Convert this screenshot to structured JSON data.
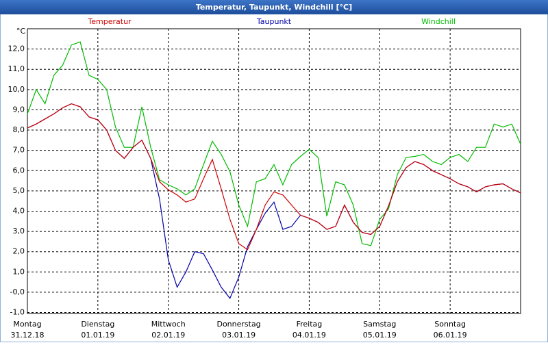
{
  "chart_data": {
    "type": "line",
    "title": "Temperatur, Taupunkt, Windchill [°C]",
    "y_label": "°C",
    "x": [
      0,
      0.125,
      0.25,
      0.375,
      0.5,
      0.625,
      0.75,
      0.875,
      1,
      1.125,
      1.25,
      1.375,
      1.5,
      1.625,
      1.75,
      1.875,
      2,
      2.125,
      2.25,
      2.375,
      2.5,
      2.625,
      2.75,
      2.875,
      3,
      3.125,
      3.25,
      3.375,
      3.5,
      3.625,
      3.75,
      3.875,
      4,
      4.125,
      4.25,
      4.375,
      4.5,
      4.625,
      4.75,
      4.875,
      5,
      5.125,
      5.25,
      5.375,
      5.5,
      5.625,
      5.75,
      5.875,
      6,
      6.125,
      6.25,
      6.375,
      6.5,
      6.625,
      6.75,
      6.875,
      7
    ],
    "xlim": [
      0,
      7
    ],
    "xticks": [
      {
        "value": 0,
        "label": "Montag"
      },
      {
        "value": 1,
        "label": "Dienstag"
      },
      {
        "value": 2,
        "label": "Mittwoch"
      },
      {
        "value": 3,
        "label": "Donnerstag"
      },
      {
        "value": 4,
        "label": "Freitag"
      },
      {
        "value": 5,
        "label": "Samstag"
      },
      {
        "value": 6,
        "label": "Sonntag"
      }
    ],
    "xtick_dates": [
      "31.12.18",
      "01.01.19",
      "02.01.19",
      "03.01.19",
      "04.01.19",
      "05.01.19",
      "06.01.19"
    ],
    "ylim": [
      -1.05,
      13
    ],
    "yticks": [
      {
        "value": -1,
        "label": "-1,0"
      },
      {
        "value": 0,
        "label": "-0,0"
      },
      {
        "value": 1,
        "label": "1,0"
      },
      {
        "value": 2,
        "label": "2,0"
      },
      {
        "value": 3,
        "label": "3,0"
      },
      {
        "value": 4,
        "label": "4,0"
      },
      {
        "value": 5,
        "label": "5,0"
      },
      {
        "value": 6,
        "label": "6,0"
      },
      {
        "value": 7,
        "label": "7,0"
      },
      {
        "value": 8,
        "label": "8,0"
      },
      {
        "value": 9,
        "label": "9,0"
      },
      {
        "value": 10,
        "label": "10,0"
      },
      {
        "value": 11,
        "label": "11,0"
      },
      {
        "value": 12,
        "label": "12,0"
      }
    ],
    "grid": true,
    "series": [
      {
        "name": "Temperatur",
        "color": "#cc0000",
        "values": [
          8.1,
          8.3,
          8.55,
          8.8,
          9.1,
          9.3,
          9.15,
          8.65,
          8.5,
          8.0,
          7.0,
          6.6,
          7.15,
          7.5,
          6.6,
          5.45,
          5.05,
          4.8,
          4.45,
          4.6,
          5.6,
          6.55,
          5.1,
          3.6,
          2.4,
          2.1,
          3.1,
          4.3,
          4.95,
          4.8,
          4.3,
          3.8,
          3.65,
          3.45,
          3.1,
          3.25,
          4.3,
          3.45,
          2.95,
          2.85,
          3.25,
          4.25,
          5.45,
          6.15,
          6.45,
          6.3,
          6.0,
          5.8,
          5.6,
          5.35,
          5.2,
          4.95,
          5.2,
          5.3,
          5.35,
          5.1,
          4.9
        ]
      },
      {
        "name": "Taupunkt",
        "color": "#0000aa",
        "values": [
          8.1,
          8.3,
          8.55,
          8.8,
          9.1,
          9.3,
          9.15,
          8.65,
          8.5,
          8.0,
          7.0,
          6.6,
          7.15,
          7.5,
          6.6,
          4.6,
          1.6,
          0.25,
          1.0,
          2.0,
          1.9,
          1.1,
          0.25,
          -0.3,
          0.75,
          2.25,
          3.1,
          3.9,
          4.45,
          3.1,
          3.25,
          3.8,
          3.65,
          3.45,
          3.1,
          3.25,
          4.3,
          3.45,
          2.95,
          2.85,
          3.25,
          4.25,
          5.45,
          6.15,
          6.45,
          6.3,
          6.0,
          5.8,
          5.6,
          5.35,
          5.2,
          4.95,
          5.2,
          5.3,
          5.35,
          5.1,
          4.9
        ]
      },
      {
        "name": "Windchill",
        "color": "#00bb00",
        "values": [
          8.8,
          10.0,
          9.3,
          10.7,
          11.2,
          12.2,
          12.35,
          10.7,
          10.5,
          10.0,
          8.15,
          7.15,
          7.15,
          9.15,
          7.15,
          5.55,
          5.3,
          5.1,
          4.8,
          5.1,
          6.3,
          7.45,
          6.8,
          5.95,
          4.3,
          3.25,
          5.45,
          5.6,
          6.3,
          5.3,
          6.3,
          6.7,
          7.05,
          6.65,
          3.75,
          5.45,
          5.3,
          4.3,
          2.4,
          2.3,
          3.6,
          4.1,
          5.8,
          6.65,
          6.7,
          6.8,
          6.45,
          6.3,
          6.65,
          6.8,
          6.45,
          7.15,
          7.15,
          8.3,
          8.15,
          8.3,
          7.3
        ]
      }
    ]
  }
}
